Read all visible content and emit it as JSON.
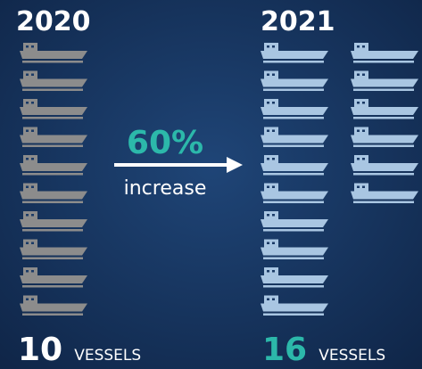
{
  "left": {
    "year": "2020",
    "count": 10,
    "unit": "VESSELS"
  },
  "right": {
    "year": "2021",
    "count": 16,
    "unit": "VESSELS"
  },
  "change": "60%",
  "caption": "increase"
}
